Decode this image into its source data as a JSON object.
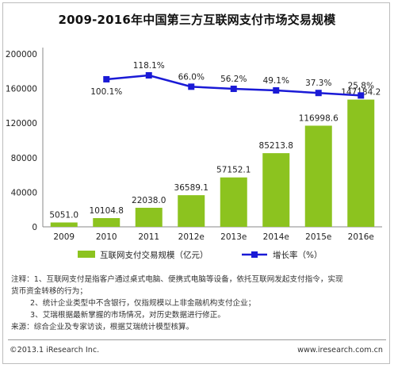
{
  "title": "2009-2016年中国第三方互联网支付市场交易规模",
  "chart_data": {
    "type": "bar",
    "categories": [
      "2009",
      "2010",
      "2011",
      "2012e",
      "2013e",
      "2014e",
      "2015e",
      "2016e"
    ],
    "series": [
      {
        "name": "互联网支付交易规模（亿元）",
        "type": "bar",
        "values": [
          5051.0,
          10104.8,
          22038.0,
          36589.1,
          57152.1,
          85213.8,
          116998.6,
          147184.2
        ],
        "labels": [
          "5051.0",
          "10104.8",
          "22038.0",
          "36589.1",
          "57152.1",
          "85213.8",
          "116998.6",
          "147184.2"
        ],
        "color": "#8cc31f"
      },
      {
        "name": "增长率（%）",
        "type": "line",
        "values": [
          null,
          100.1,
          118.1,
          66.0,
          56.2,
          49.1,
          37.3,
          25.8
        ],
        "labels": [
          "",
          "100.1%",
          "118.1%",
          "66.0%",
          "56.2%",
          "49.1%",
          "37.3%",
          "25.8%"
        ],
        "color": "#1a1ad6"
      }
    ],
    "y_ticks": [
      "0",
      "40000",
      "80000",
      "120000",
      "160000",
      "200000"
    ],
    "ylim": [
      0,
      200000
    ],
    "grid": false,
    "legend_position": "bottom"
  },
  "notes": {
    "line1": "注释：1、互联网支付是指客户通过桌式电脑、便携式电脑等设备，依托互联网发起支付指令，实现",
    "line2": "货币资金转移的行为；",
    "line3": "2、统计企业类型中不含银行，仅指规模以上非金融机构支付企业；",
    "line4": "3、艾瑞根据最新掌握的市场情况，对历史数据进行修正。",
    "source": "来源：综合企业及专家访谈，根据艾瑞统计模型核算。"
  },
  "footer": {
    "copyright": "©2013.1 iResearch Inc.",
    "website": "www.iresearch.com.cn"
  }
}
